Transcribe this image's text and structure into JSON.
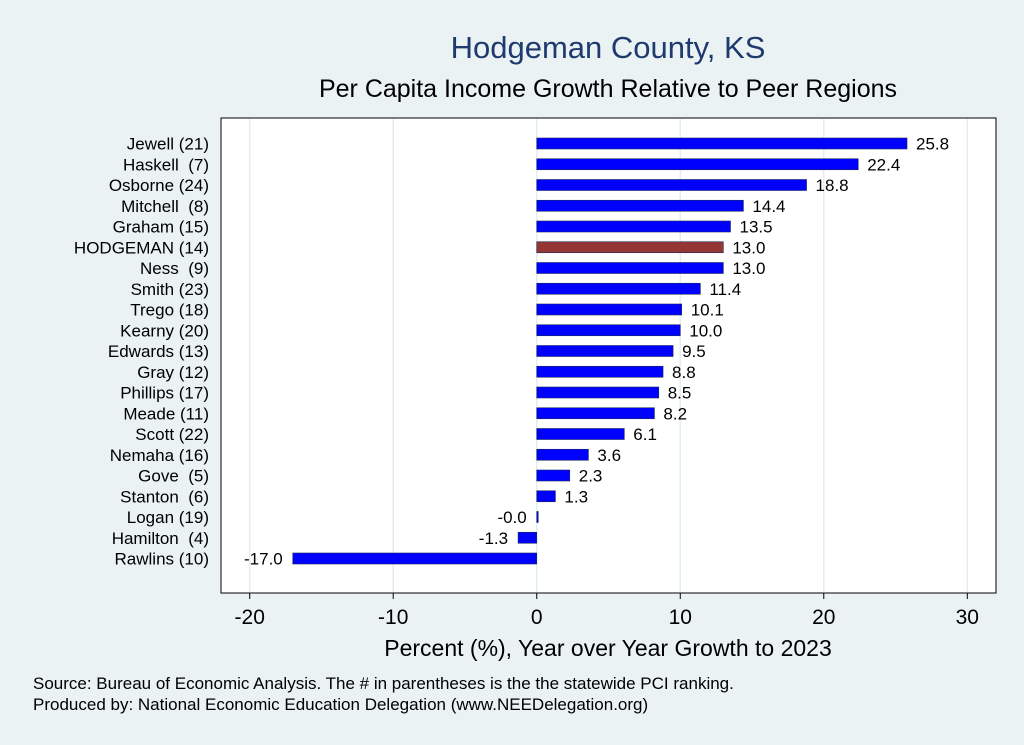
{
  "chart_data": {
    "type": "bar",
    "orientation": "horizontal",
    "title": "Hodgeman County, KS",
    "subtitle": "Per Capita Income Growth Relative to Peer Regions",
    "xlabel": "Percent (%), Year over Year Growth to 2023",
    "xlim": [
      -22,
      32
    ],
    "xticks": [
      -20,
      -10,
      0,
      10,
      20,
      30
    ],
    "xtick_labels": [
      "-20",
      "-10",
      "0",
      "10",
      "20",
      "30"
    ],
    "categories": [
      "Jewell (21)",
      "Haskell  (7)",
      "Osborne (24)",
      "Mitchell  (8)",
      "Graham (15)",
      "HODGEMAN (14)",
      "Ness  (9)",
      "Smith (23)",
      "Trego (18)",
      "Kearny (20)",
      "Edwards (13)",
      "Gray (12)",
      "Phillips (17)",
      "Meade (11)",
      "Scott (22)",
      "Nemaha (16)",
      "Gove  (5)",
      "Stanton  (6)",
      "Logan (19)",
      "Hamilton  (4)",
      "Rawlins (10)"
    ],
    "values": [
      25.8,
      22.4,
      18.8,
      14.4,
      13.5,
      13.0,
      13.0,
      11.4,
      10.1,
      10.0,
      9.5,
      8.8,
      8.5,
      8.2,
      6.1,
      3.6,
      2.3,
      1.3,
      -0.0,
      -1.3,
      -17.0
    ],
    "value_labels": [
      "25.8",
      "22.4",
      "18.8",
      "14.4",
      "13.5",
      "13.0",
      "13.0",
      "11.4",
      "10.1",
      "10.0",
      "9.5",
      "8.8",
      "8.5",
      "8.2",
      "6.1",
      "3.6",
      "2.3",
      "1.3",
      "-0.0",
      "-1.3",
      "-17.0"
    ],
    "highlight_category": "HODGEMAN (14)",
    "bar_color": "#0000ff",
    "highlight_color": "#943634",
    "grid": true
  },
  "footer": {
    "source": "Source: Bureau of Economic Analysis. The # in parentheses is the the statewide PCI ranking.",
    "produced_by": "Produced by: National Economic Education Delegation (www.NEEDelegation.org)"
  },
  "colors": {
    "background": "#eaf2f3",
    "plot_background": "#ffffff",
    "title_color": "#1e3a6e",
    "grid_color": "#e2eff0"
  }
}
